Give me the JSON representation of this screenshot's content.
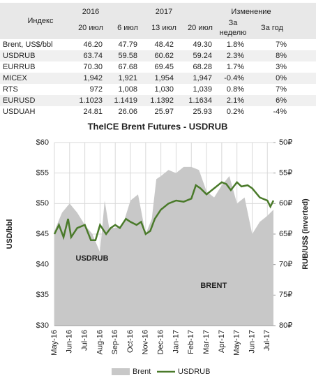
{
  "table": {
    "header": {
      "index": "Индекс",
      "year1": "2016",
      "year2": "2017",
      "change": "Изменение",
      "dates": [
        "20 июл",
        "6 июл",
        "13 июл",
        "20 июл"
      ],
      "week": [
        "За",
        "неделю"
      ],
      "year": "За год"
    },
    "rows": [
      [
        "Brent, US$/bbl",
        "46.20",
        "47.79",
        "48.42",
        "49.30",
        "1.8%",
        "7%"
      ],
      [
        "USDRUB",
        "63.74",
        "59.58",
        "60.62",
        "59.24",
        "2.3%",
        "8%"
      ],
      [
        "EURRUB",
        "70.30",
        "67.68",
        "69.45",
        "68.28",
        "1.7%",
        "3%"
      ],
      [
        "MICEX",
        "1,942",
        "1,921",
        "1,954",
        "1,947",
        "-0.4%",
        "0%"
      ],
      [
        "RTS",
        "972",
        "1,008",
        "1,030",
        "1,039",
        "0.8%",
        "7%"
      ],
      [
        "EURUSD",
        "1.1023",
        "1.1419",
        "1.1392",
        "1.1634",
        "2.1%",
        "6%"
      ],
      [
        "USDUAH",
        "24.81",
        "26.06",
        "25.97",
        "25.93",
        "0.2%",
        "-4%"
      ]
    ]
  },
  "chart_data": {
    "type": "area-line",
    "title": "TheICE Brent Futures - USDRUB",
    "ylabel": "USD/bbl",
    "y2label": "RUB/US$ (inverted)",
    "xlim": [
      0,
      14.4
    ],
    "xticks": [
      {
        "value": 0,
        "label": "May-16"
      },
      {
        "value": 1,
        "label": "Jun-16"
      },
      {
        "value": 2,
        "label": "Jul-16"
      },
      {
        "value": 3,
        "label": "Aug-16"
      },
      {
        "value": 4,
        "label": "Sep-16"
      },
      {
        "value": 5,
        "label": "Oct-16"
      },
      {
        "value": 6,
        "label": "Nov-16"
      },
      {
        "value": 7,
        "label": "Dec-16"
      },
      {
        "value": 8,
        "label": "Jan-17"
      },
      {
        "value": 9,
        "label": "Feb-17"
      },
      {
        "value": 10,
        "label": "Mar-17"
      },
      {
        "value": 11,
        "label": "Apr-17"
      },
      {
        "value": 12,
        "label": "May-17"
      },
      {
        "value": 13,
        "label": "Jun-17"
      },
      {
        "value": 14,
        "label": "Jul-17"
      }
    ],
    "ylim": [
      30,
      60
    ],
    "yticks": [
      {
        "value": 30,
        "label": "$30"
      },
      {
        "value": 35,
        "label": "$35"
      },
      {
        "value": 40,
        "label": "$40"
      },
      {
        "value": 45,
        "label": "$45"
      },
      {
        "value": 50,
        "label": "$50"
      },
      {
        "value": 55,
        "label": "$55"
      },
      {
        "value": 60,
        "label": "$60"
      }
    ],
    "y2lim": [
      50,
      80
    ],
    "y2_inverted": true,
    "y2ticks": [
      {
        "value": 50,
        "label": "50₽"
      },
      {
        "value": 55,
        "label": "55₽"
      },
      {
        "value": 60,
        "label": "60₽"
      },
      {
        "value": 65,
        "label": "65₽"
      },
      {
        "value": 70,
        "label": "70₽"
      },
      {
        "value": 75,
        "label": "75₽"
      },
      {
        "value": 80,
        "label": "80₽"
      }
    ],
    "grid": true,
    "series": [
      {
        "name": "Brent",
        "kind": "area",
        "color": "#c8c8c8",
        "x": [
          0,
          0.5,
          1,
          1.5,
          2,
          2.5,
          3,
          3.3,
          3.6,
          4,
          4.5,
          5,
          5.5,
          6,
          6.4,
          6.7,
          7,
          7.5,
          8,
          8.5,
          9,
          9.5,
          10,
          10.5,
          11,
          11.5,
          12,
          12.5,
          13,
          13.5,
          14,
          14.4
        ],
        "values": [
          45.5,
          48.5,
          50,
          48.5,
          46.5,
          45,
          42,
          50.5,
          46,
          46,
          46.5,
          50.5,
          51.5,
          45,
          47.5,
          54,
          54.5,
          55.5,
          55,
          56,
          56,
          55.5,
          52,
          51,
          53,
          54.5,
          50,
          51,
          45,
          47,
          48,
          49
        ]
      },
      {
        "name": "USDRUB",
        "kind": "line",
        "axis": "y2",
        "color": "#4a7a2a",
        "x": [
          0,
          0.3,
          0.6,
          0.9,
          1.1,
          1.5,
          2,
          2.4,
          2.7,
          3,
          3.4,
          3.7,
          4,
          4.3,
          4.7,
          5,
          5.4,
          5.7,
          6,
          6.3,
          6.6,
          7,
          7.5,
          8,
          8.5,
          9,
          9.3,
          9.6,
          10,
          10.5,
          11,
          11.3,
          11.6,
          12,
          12.3,
          12.7,
          13,
          13.5,
          14,
          14.2,
          14.4
        ],
        "values": [
          65,
          63.5,
          65.5,
          62.5,
          65.5,
          64,
          63.5,
          66,
          66,
          63.5,
          65,
          64,
          63.5,
          64,
          62.5,
          63,
          63.5,
          63,
          65,
          64.5,
          62.5,
          61,
          60,
          59.5,
          59.7,
          59.2,
          57,
          57.5,
          58.5,
          57.5,
          56.5,
          56.8,
          57.8,
          56.5,
          57.2,
          57,
          57.5,
          59,
          59.5,
          60.5,
          59.5
        ]
      }
    ],
    "annotations": [
      {
        "text": "USDRUB",
        "x": 1.4,
        "y": 41
      },
      {
        "text": "BRENT",
        "x": 9.6,
        "y": 36.5
      }
    ]
  }
}
